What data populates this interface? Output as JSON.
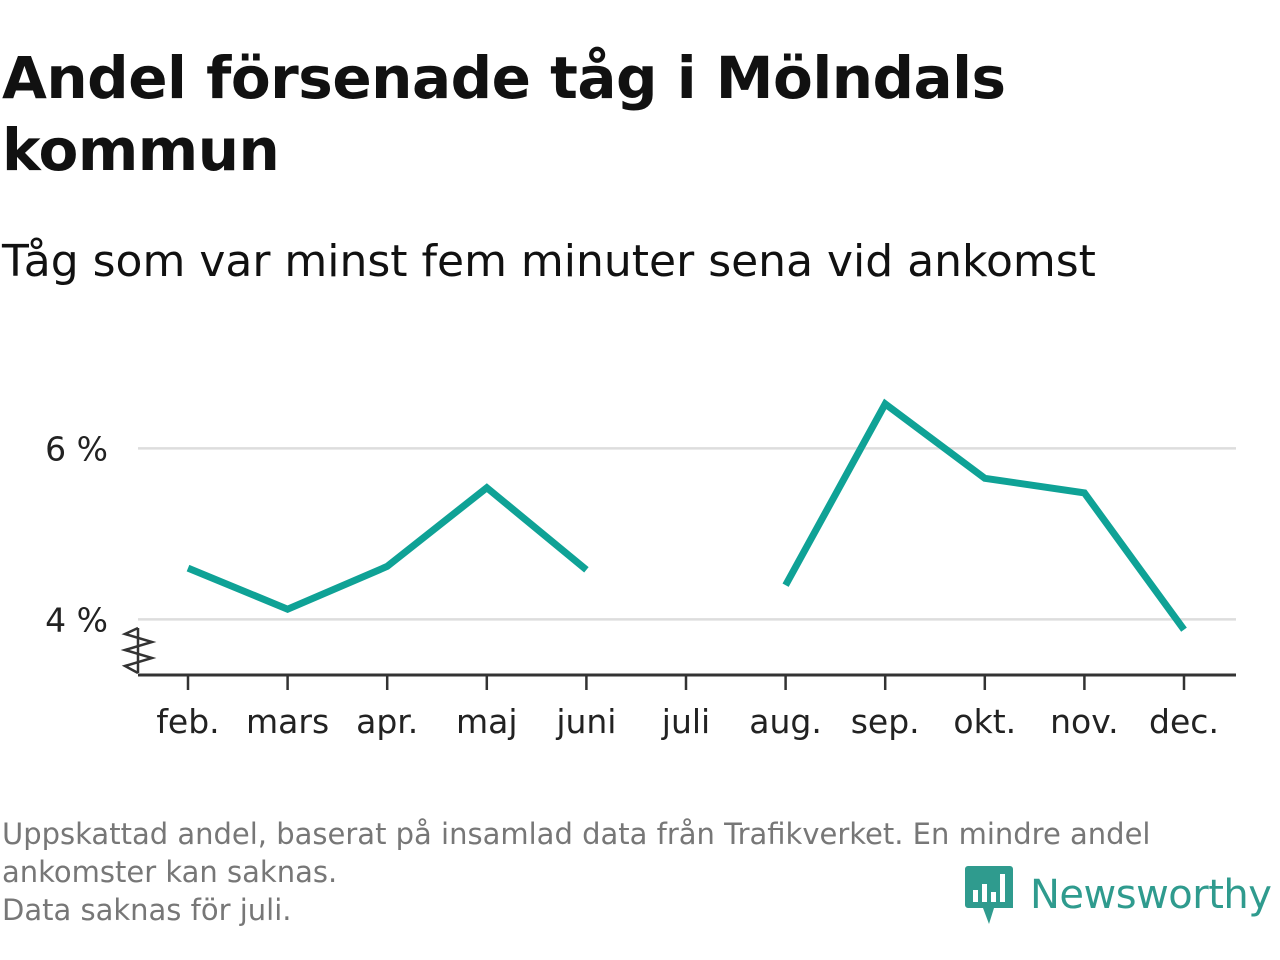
{
  "header": {
    "title": "Andel försenade tåg i Mölndals kommun",
    "subtitle": "Tåg som var minst fem minuter sena vid ankomst"
  },
  "chart_data": {
    "type": "line",
    "categories": [
      "feb.",
      "mars",
      "apr.",
      "maj",
      "juni",
      "juli",
      "aug.",
      "sep.",
      "okt.",
      "nov.",
      "dec."
    ],
    "series": [
      {
        "values": [
          4.6,
          4.12,
          4.62,
          5.54,
          4.58,
          null,
          4.4,
          6.52,
          5.65,
          5.48,
          3.88
        ]
      }
    ],
    "yticks": [
      {
        "value": 4,
        "label": "4 %"
      },
      {
        "value": 6,
        "label": "6 %"
      }
    ],
    "ylim": [
      3.35,
      6.8
    ],
    "y_axis_break": true,
    "grid": "horizontal",
    "line_color": "#0fa296"
  },
  "footnote": {
    "line1": "Uppskattad andel, baserat på insamlad data från Trafikverket. En mindre andel",
    "line2": "ankomster kan saknas.",
    "line3": "Data saknas för juli."
  },
  "brand": {
    "name": "Newsworthy",
    "logo_icon": "newsworthy-logo-icon",
    "color": "#2f9b8e"
  }
}
